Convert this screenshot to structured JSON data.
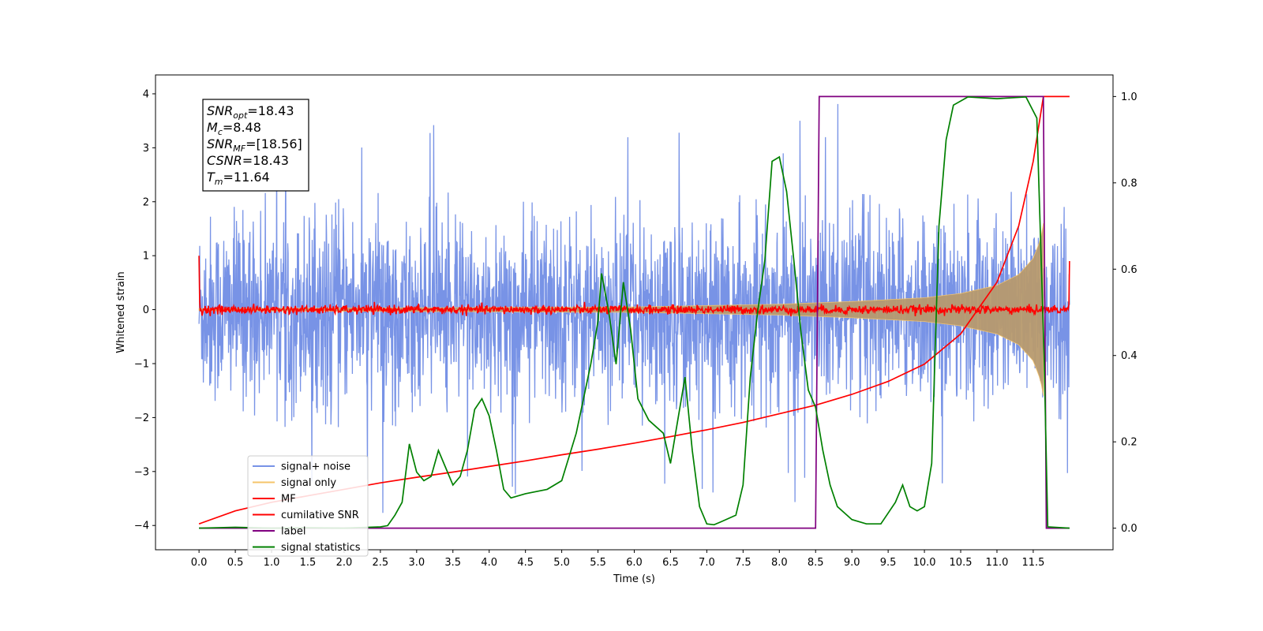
{
  "chart_data": {
    "type": "line",
    "xlabel": "Time (s)",
    "ylabel": "Whitened strain",
    "xlim": [
      -0.6,
      12.6
    ],
    "ylim_left": [
      -4.45,
      4.35
    ],
    "ylim_right": [
      -0.05,
      1.05
    ],
    "x_ticks": [
      "0.0",
      "0.5",
      "1.0",
      "1.5",
      "2.0",
      "2.5",
      "3.0",
      "3.5",
      "4.0",
      "4.5",
      "5.0",
      "5.5",
      "6.0",
      "6.5",
      "7.0",
      "7.5",
      "8.0",
      "8.5",
      "9.0",
      "9.5",
      "10.0",
      "10.5",
      "11.0",
      "11.5"
    ],
    "y_ticks_left": [
      "4",
      "3",
      "2",
      "1",
      "0",
      "−1",
      "−2",
      "−3",
      "−4"
    ],
    "y_ticks_right": [
      "1.0",
      "0.8",
      "0.6",
      "0.4",
      "0.2",
      "0.0"
    ],
    "legend_position": "lower-left",
    "info_box": {
      "lines": [
        {
          "sym": "SNR",
          "sub": "opt",
          "value": "=18.43"
        },
        {
          "sym": "M",
          "sub": "c",
          "value": "=8.48"
        },
        {
          "sym": "SNR",
          "sub": "MF",
          "value": "=[18.56]"
        },
        {
          "sym": "CSNR",
          "sub": "",
          "value": "=18.43"
        },
        {
          "sym": "T",
          "sub": "m",
          "value": "=11.64"
        }
      ]
    },
    "series": [
      {
        "name": "signal+ noise",
        "axis": "left",
        "color": "#7893e6",
        "approx_envelope": {
          "typical_min": -2.2,
          "typical_max": 2.2,
          "spike_max": 3.95,
          "spike_min": -4.15
        },
        "x_range": [
          0.0,
          12.0
        ]
      },
      {
        "name": "signal only",
        "axis": "left",
        "color": "#f5c46a",
        "approx_envelope": {
          "x": [
            0.0,
            6.0,
            8.0,
            9.0,
            10.0,
            10.5,
            11.0,
            11.3,
            11.5,
            11.6,
            11.64
          ],
          "amp": [
            0.02,
            0.05,
            0.1,
            0.15,
            0.22,
            0.3,
            0.45,
            0.65,
            0.95,
            1.3,
            1.6
          ]
        }
      },
      {
        "name": "MF",
        "axis": "left",
        "color": "#ff0000",
        "approx_values": {
          "noise_amp": 0.08,
          "start_value": 1.0,
          "end_value": 0.9
        }
      },
      {
        "name": "cumilative SNR",
        "axis": "right",
        "color": "#ff0000",
        "points": [
          [
            0.0,
            0.01
          ],
          [
            0.5,
            0.04
          ],
          [
            1.0,
            0.06
          ],
          [
            1.5,
            0.075
          ],
          [
            2.0,
            0.09
          ],
          [
            2.5,
            0.105
          ],
          [
            3.0,
            0.118
          ],
          [
            3.5,
            0.13
          ],
          [
            4.0,
            0.143
          ],
          [
            4.5,
            0.156
          ],
          [
            5.0,
            0.17
          ],
          [
            5.5,
            0.183
          ],
          [
            6.0,
            0.197
          ],
          [
            6.5,
            0.212
          ],
          [
            7.0,
            0.228
          ],
          [
            7.5,
            0.245
          ],
          [
            8.0,
            0.265
          ],
          [
            8.5,
            0.285
          ],
          [
            9.0,
            0.31
          ],
          [
            9.5,
            0.34
          ],
          [
            10.0,
            0.38
          ],
          [
            10.5,
            0.45
          ],
          [
            11.0,
            0.57
          ],
          [
            11.3,
            0.7
          ],
          [
            11.5,
            0.85
          ],
          [
            11.64,
            1.0
          ],
          [
            12.0,
            1.0
          ]
        ]
      },
      {
        "name": "label",
        "axis": "right",
        "color": "#800080",
        "points": [
          [
            0.0,
            0.0
          ],
          [
            8.5,
            0.0
          ],
          [
            8.55,
            1.0
          ],
          [
            11.64,
            1.0
          ],
          [
            11.68,
            0.0
          ],
          [
            12.0,
            0.0
          ]
        ]
      },
      {
        "name": "signal statistics",
        "axis": "right",
        "color": "#008000",
        "points": [
          [
            0.0,
            0.0
          ],
          [
            0.5,
            0.002
          ],
          [
            1.0,
            0.0
          ],
          [
            1.5,
            0.001
          ],
          [
            2.0,
            0.0
          ],
          [
            2.5,
            0.003
          ],
          [
            2.6,
            0.006
          ],
          [
            2.7,
            0.03
          ],
          [
            2.8,
            0.06
          ],
          [
            2.9,
            0.195
          ],
          [
            3.0,
            0.13
          ],
          [
            3.1,
            0.11
          ],
          [
            3.2,
            0.12
          ],
          [
            3.3,
            0.18
          ],
          [
            3.4,
            0.14
          ],
          [
            3.5,
            0.1
          ],
          [
            3.6,
            0.12
          ],
          [
            3.7,
            0.18
          ],
          [
            3.8,
            0.275
          ],
          [
            3.9,
            0.3
          ],
          [
            4.0,
            0.26
          ],
          [
            4.1,
            0.18
          ],
          [
            4.2,
            0.09
          ],
          [
            4.3,
            0.07
          ],
          [
            4.5,
            0.08
          ],
          [
            4.8,
            0.09
          ],
          [
            5.0,
            0.11
          ],
          [
            5.2,
            0.22
          ],
          [
            5.4,
            0.38
          ],
          [
            5.5,
            0.48
          ],
          [
            5.55,
            0.59
          ],
          [
            5.65,
            0.5
          ],
          [
            5.75,
            0.38
          ],
          [
            5.85,
            0.57
          ],
          [
            5.95,
            0.46
          ],
          [
            6.05,
            0.3
          ],
          [
            6.2,
            0.25
          ],
          [
            6.4,
            0.22
          ],
          [
            6.5,
            0.15
          ],
          [
            6.6,
            0.25
          ],
          [
            6.7,
            0.35
          ],
          [
            6.8,
            0.18
          ],
          [
            6.9,
            0.05
          ],
          [
            7.0,
            0.01
          ],
          [
            7.1,
            0.008
          ],
          [
            7.2,
            0.015
          ],
          [
            7.4,
            0.03
          ],
          [
            7.5,
            0.1
          ],
          [
            7.6,
            0.35
          ],
          [
            7.7,
            0.5
          ],
          [
            7.8,
            0.62
          ],
          [
            7.9,
            0.85
          ],
          [
            8.0,
            0.86
          ],
          [
            8.1,
            0.78
          ],
          [
            8.2,
            0.62
          ],
          [
            8.3,
            0.45
          ],
          [
            8.4,
            0.32
          ],
          [
            8.5,
            0.28
          ],
          [
            8.6,
            0.18
          ],
          [
            8.7,
            0.1
          ],
          [
            8.8,
            0.05
          ],
          [
            9.0,
            0.02
          ],
          [
            9.2,
            0.01
          ],
          [
            9.4,
            0.01
          ],
          [
            9.6,
            0.06
          ],
          [
            9.7,
            0.1
          ],
          [
            9.8,
            0.05
          ],
          [
            9.9,
            0.04
          ],
          [
            10.0,
            0.05
          ],
          [
            10.1,
            0.15
          ],
          [
            10.2,
            0.7
          ],
          [
            10.3,
            0.9
          ],
          [
            10.4,
            0.98
          ],
          [
            10.6,
            0.999
          ],
          [
            11.0,
            0.995
          ],
          [
            11.4,
            0.999
          ],
          [
            11.55,
            0.95
          ],
          [
            11.65,
            0.4
          ],
          [
            11.7,
            0.003
          ],
          [
            12.0,
            0.0
          ]
        ]
      }
    ]
  }
}
